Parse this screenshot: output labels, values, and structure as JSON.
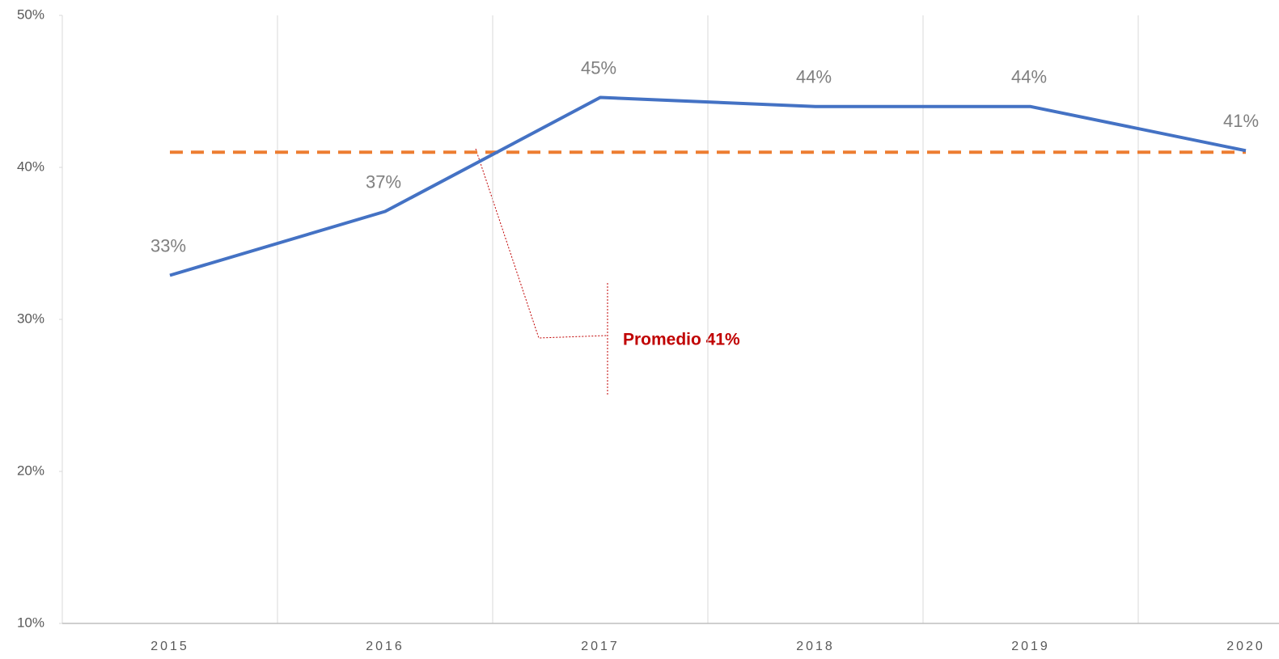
{
  "chart_data": {
    "type": "line",
    "categories": [
      "2015",
      "2016",
      "2017",
      "2018",
      "2019",
      "2020"
    ],
    "series": [
      {
        "color": "#4472c4",
        "values": [
          32.9,
          37.1,
          44.6,
          44.0,
          44.0,
          41.1
        ],
        "value_labels": [
          "33%",
          "37%",
          "45%",
          "44%",
          "44%",
          "41%"
        ]
      },
      {
        "color": "#ed7d31",
        "dashed": true,
        "values": [
          41,
          41,
          41,
          41,
          41,
          41
        ]
      }
    ],
    "annotation": "Promedio 41%",
    "ylim": [
      10,
      50
    ],
    "yticks": [
      {
        "value": 10,
        "label": "10%"
      },
      {
        "value": 20,
        "label": "20%"
      },
      {
        "value": 30,
        "label": "30%"
      },
      {
        "value": 40,
        "label": "40%"
      },
      {
        "value": 50,
        "label": "50%"
      }
    ],
    "grid": true
  }
}
